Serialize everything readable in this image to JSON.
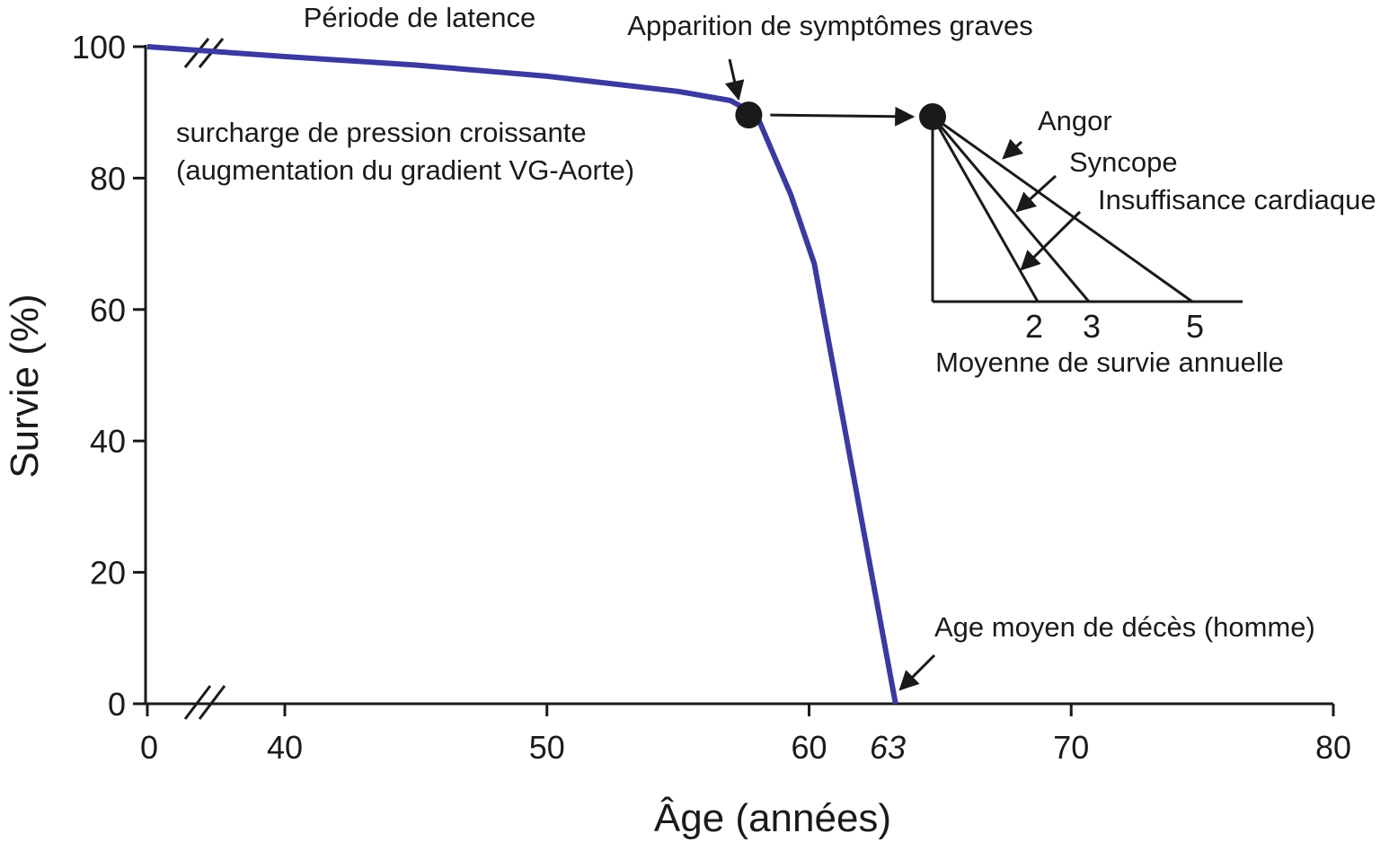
{
  "chart_data": {
    "type": "line",
    "xlabel": "Âge (années)",
    "ylabel": "Survie (%)",
    "xlim": [
      0,
      80
    ],
    "ylim": [
      0,
      100
    ],
    "x_axis_break": true,
    "y_axis_break": true,
    "x_ticks": [
      {
        "value": 0,
        "label": "0"
      },
      {
        "value": 40,
        "label": "40"
      },
      {
        "value": 50,
        "label": "50"
      },
      {
        "value": 60,
        "label": "60"
      },
      {
        "value": 63,
        "label": "63"
      },
      {
        "value": 70,
        "label": "70"
      },
      {
        "value": 80,
        "label": "80"
      }
    ],
    "y_ticks": [
      {
        "value": 0,
        "label": "0"
      },
      {
        "value": 20,
        "label": "20"
      },
      {
        "value": 40,
        "label": "40"
      },
      {
        "value": 60,
        "label": "60"
      },
      {
        "value": 80,
        "label": "80"
      },
      {
        "value": 100,
        "label": "100"
      }
    ],
    "series": [
      {
        "color": "#3a3aa0",
        "points": [
          {
            "x": 0,
            "y": 100
          },
          {
            "x": 40,
            "y": 98.5
          },
          {
            "x": 45,
            "y": 97.2
          },
          {
            "x": 50,
            "y": 95.5
          },
          {
            "x": 55,
            "y": 93.2
          },
          {
            "x": 57,
            "y": 91.8
          },
          {
            "x": 58,
            "y": 89.6
          },
          {
            "x": 59.3,
            "y": 77.5
          },
          {
            "x": 60.2,
            "y": 67
          },
          {
            "x": 63.3,
            "y": 0
          }
        ]
      }
    ],
    "onset_marker": {
      "x": 57.7,
      "y": 89.6,
      "color": "#1a1a1a"
    },
    "annotations": [
      {
        "id": "latence",
        "text": "Période de latence"
      },
      {
        "id": "symptomes",
        "text": "Apparition de symptômes graves"
      },
      {
        "id": "surcharge1",
        "text": "surcharge de pression croissante"
      },
      {
        "id": "surcharge2",
        "text": "(augmentation du gradient VG-Aorte)"
      },
      {
        "id": "deces",
        "text": "Age moyen de décès (homme)"
      }
    ],
    "inset": {
      "xlabel": "Moyenne de survie annuelle",
      "lines": [
        {
          "label": "Insuffisance cardiaque",
          "years": 2
        },
        {
          "label": "Syncope",
          "years": 3
        },
        {
          "label": "Angor",
          "years": 5
        }
      ]
    }
  }
}
